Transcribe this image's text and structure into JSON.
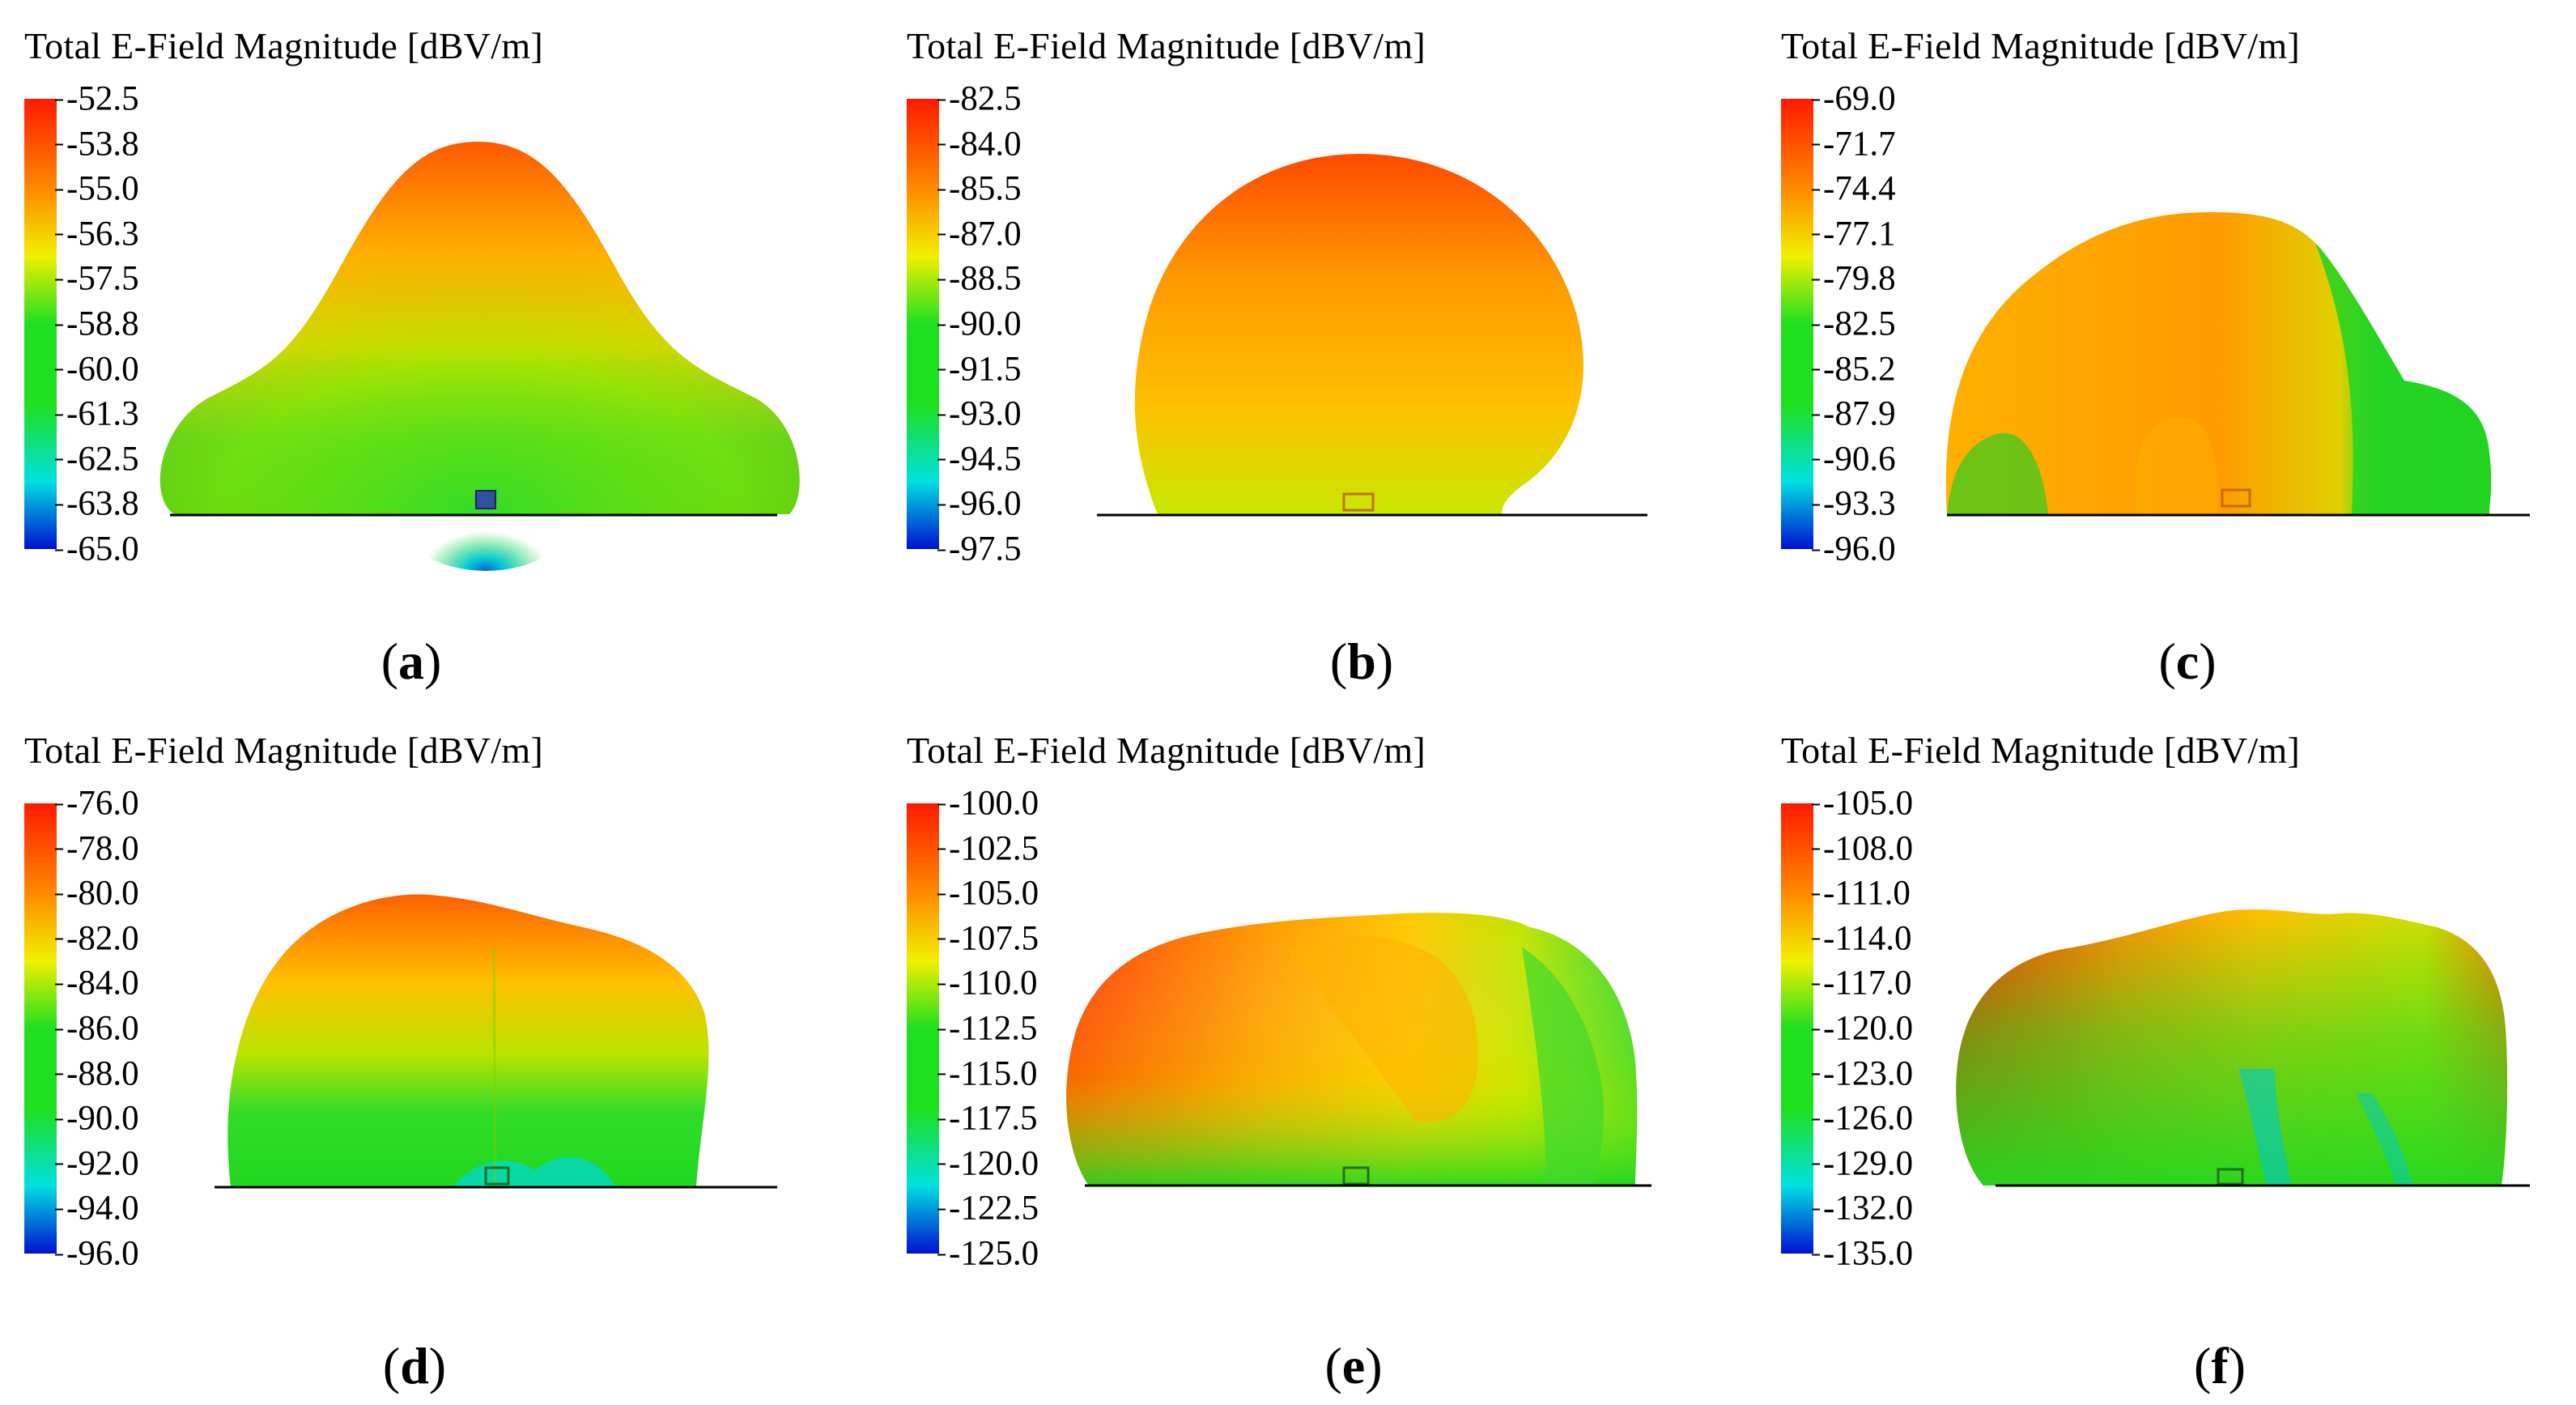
{
  "figure": {
    "panels": [
      {
        "id": "a",
        "title": "Total E-Field Magnitude [dBV/m]",
        "label_open": "(",
        "label_letter": "a",
        "label_close": ")",
        "ticks": [
          "-52.5",
          "-53.8",
          "-55.0",
          "-56.3",
          "-57.5",
          "-58.8",
          "-60.0",
          "-61.3",
          "-62.5",
          "-63.8",
          "-65.0"
        ]
      },
      {
        "id": "b",
        "title": "Total E-Field Magnitude [dBV/m]",
        "label_open": "(",
        "label_letter": "b",
        "label_close": ")",
        "ticks": [
          "-82.5",
          "-84.0",
          "-85.5",
          "-87.0",
          "-88.5",
          "-90.0",
          "-91.5",
          "-93.0",
          "-94.5",
          "-96.0",
          "-97.5"
        ]
      },
      {
        "id": "c",
        "title": "Total E-Field Magnitude [dBV/m]",
        "label_open": "(",
        "label_letter": "c",
        "label_close": ")",
        "ticks": [
          "-69.0",
          "-71.7",
          "-74.4",
          "-77.1",
          "-79.8",
          "-82.5",
          "-85.2",
          "-87.9",
          "-90.6",
          "-93.3",
          "-96.0"
        ]
      },
      {
        "id": "d",
        "title": "Total E-Field Magnitude [dBV/m]",
        "label_open": "(",
        "label_letter": "d",
        "label_close": ")",
        "ticks": [
          "-76.0",
          "-78.0",
          "-80.0",
          "-82.0",
          "-84.0",
          "-86.0",
          "-88.0",
          "-90.0",
          "-92.0",
          "-94.0",
          "-96.0"
        ]
      },
      {
        "id": "e",
        "title": "Total E-Field Magnitude [dBV/m]",
        "label_open": "(",
        "label_letter": "e",
        "label_close": ")",
        "ticks": [
          "-100.0",
          "-102.5",
          "-105.0",
          "-107.5",
          "-110.0",
          "-112.5",
          "-115.0",
          "-117.5",
          "-120.0",
          "-122.5",
          "-125.0"
        ]
      },
      {
        "id": "f",
        "title": "Total E-Field Magnitude [dBV/m]",
        "label_open": "(",
        "label_letter": "f",
        "label_close": ")",
        "ticks": [
          "-105.0",
          "-108.0",
          "-111.0",
          "-114.0",
          "-117.0",
          "-120.0",
          "-123.0",
          "-126.0",
          "-129.0",
          "-132.0",
          "-135.0"
        ]
      }
    ],
    "colors": {
      "red": "#ff1a00",
      "orange": "#ff8a00",
      "yellow": "#f0f000",
      "green": "#1fe01f",
      "cyan": "#00e0e0",
      "blue": "#0010d0"
    }
  }
}
